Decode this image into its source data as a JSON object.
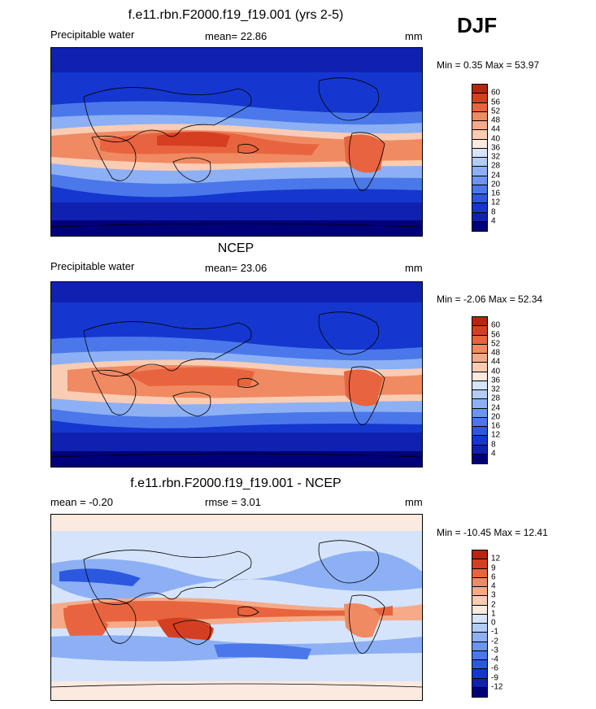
{
  "season": "DJF",
  "palette": {
    "abs": [
      "#00007a",
      "#1020b0",
      "#1537cf",
      "#2c58e0",
      "#4a78ea",
      "#6c95f0",
      "#8db0f4",
      "#b2ccf8",
      "#d6e4fb",
      "#fbeadf",
      "#f9ccb4",
      "#f5ab88",
      "#f08a62",
      "#e8643e",
      "#d63e22",
      "#b82410",
      "#8a1404"
    ],
    "diff": [
      "#00007a",
      "#1020b0",
      "#1537cf",
      "#2c58e0",
      "#4a78ea",
      "#6c95f0",
      "#8db0f4",
      "#b2ccf8",
      "#d6e4fb",
      "#fbeadf",
      "#f9ccb4",
      "#f5ab88",
      "#f08a62",
      "#e8643e",
      "#d63e22",
      "#b82410",
      "#8a1404"
    ]
  },
  "panels": [
    {
      "title": "f.e11.rbn.F2000.f19_f19.001 (yrs 2-5)",
      "left_label": "Precipitable water",
      "center_label": "mean=  22.86",
      "units": "mm",
      "minmax": "Min =   0.35 Max =  53.97",
      "colorbar_labels": [
        "60",
        "56",
        "52",
        "48",
        "44",
        "40",
        "36",
        "32",
        "28",
        "24",
        "20",
        "16",
        "12",
        "8",
        "4"
      ]
    },
    {
      "title": "NCEP",
      "left_label": "Precipitable water",
      "center_label": "mean=  23.06",
      "units": "mm",
      "minmax": "Min =  -2.06 Max =  52.34",
      "colorbar_labels": [
        "60",
        "56",
        "52",
        "48",
        "44",
        "40",
        "36",
        "32",
        "28",
        "24",
        "20",
        "16",
        "12",
        "8",
        "4"
      ]
    },
    {
      "title": "f.e11.rbn.F2000.f19_f19.001 - NCEP",
      "left_label": "mean =  -0.20",
      "center_label": "rmse =   3.01",
      "units": "mm",
      "minmax": "Min = -10.45 Max =  12.41",
      "colorbar_labels": [
        "12",
        "9",
        "6",
        "4",
        "3",
        "2",
        "1",
        "0",
        "-1",
        "-2",
        "-3",
        "-4",
        "-6",
        "-9",
        "-12"
      ]
    }
  ]
}
